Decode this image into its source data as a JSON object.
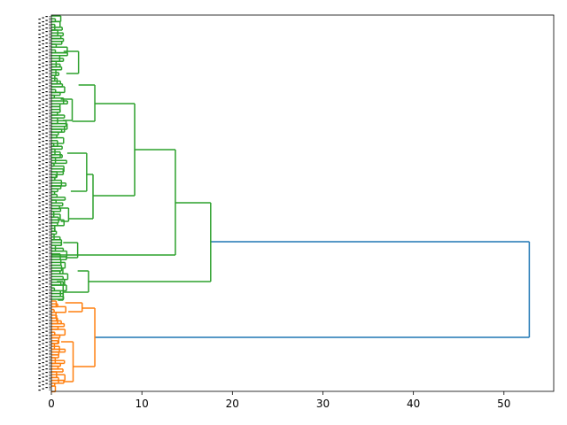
{
  "chart_data": {
    "type": "dendrogram",
    "orientation": "horizontal",
    "xlim": [
      0,
      55.5
    ],
    "xticks": [
      0,
      10,
      20,
      30,
      40,
      50
    ],
    "xtick_labels": [
      "0",
      "10",
      "20",
      "30",
      "40",
      "50"
    ],
    "leaf_count": 300,
    "colors": {
      "cluster_green": "#2ca02c",
      "cluster_orange": "#ff7f0e",
      "above_threshold": "#1f77b4",
      "axes": "#000000",
      "background": "#ffffff"
    },
    "merges": [
      {
        "name": "root",
        "height": 52.8,
        "color": "above_threshold",
        "children": [
          "green-top",
          "orange-top"
        ]
      },
      {
        "name": "green-top",
        "height": 17.6,
        "color": "cluster_green",
        "children": [
          "green-main",
          "green-lower"
        ]
      },
      {
        "name": "green-main",
        "height": 13.7,
        "color": "cluster_green",
        "children": [
          "green-upper",
          "green-middle"
        ]
      },
      {
        "name": "green-upper",
        "height": 9.2,
        "color": "cluster_green",
        "children": [
          "green-upper-a",
          "green-upper-b"
        ]
      },
      {
        "name": "green-upper-a",
        "height": 4.8,
        "color": "cluster_green",
        "children": [
          "green-upper-a1",
          "green-upper-a2"
        ]
      },
      {
        "name": "green-upper-a1",
        "height": 3.0,
        "color": "cluster_green"
      },
      {
        "name": "green-upper-a2",
        "height": 2.3,
        "color": "cluster_green"
      },
      {
        "name": "green-upper-b",
        "height": 4.6,
        "color": "cluster_green",
        "children": [
          "green-upper-b1",
          "green-upper-b2"
        ]
      },
      {
        "name": "green-upper-b1",
        "height": 3.9,
        "color": "cluster_green"
      },
      {
        "name": "green-upper-b2",
        "height": 1.9,
        "color": "cluster_green"
      },
      {
        "name": "green-lower",
        "height": 4.1,
        "color": "cluster_green",
        "children": [
          "green-lower-1",
          "green-lower-2"
        ]
      },
      {
        "name": "green-lower-1",
        "height": 2.9,
        "color": "cluster_green"
      },
      {
        "name": "green-lower-2",
        "height": 1.3,
        "color": "cluster_green"
      },
      {
        "name": "orange-top",
        "height": 4.8,
        "color": "cluster_orange",
        "children": [
          "orange-a",
          "orange-b"
        ]
      },
      {
        "name": "orange-a",
        "height": 3.4,
        "color": "cluster_orange"
      },
      {
        "name": "orange-b",
        "height": 2.4,
        "color": "cluster_orange"
      }
    ]
  }
}
